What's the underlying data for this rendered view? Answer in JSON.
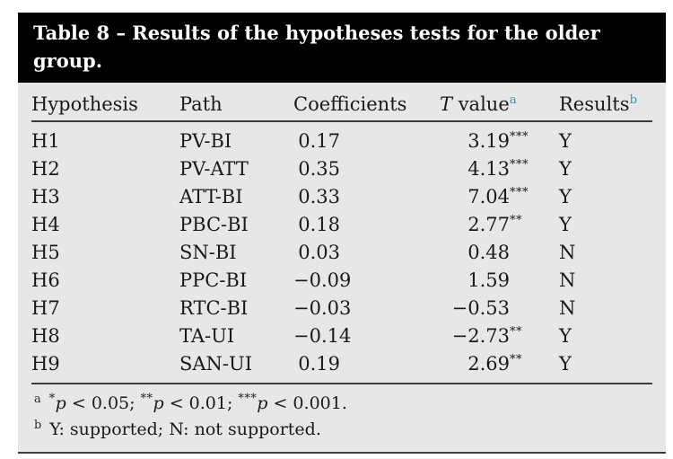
{
  "title": "Table 8 – Results of the hypotheses tests for the older group.",
  "columns": [
    {
      "label": "Hypothesis"
    },
    {
      "label": "Path"
    },
    {
      "label": "Coefficients"
    },
    {
      "label_italic": "T",
      "label_rest": " value",
      "sup": "a"
    },
    {
      "label": "Results",
      "sup": "b"
    }
  ],
  "rows": [
    {
      "hypothesis": "H1",
      "path": "PV-BI",
      "coefficient": "0.17",
      "t_value": "3.19",
      "stars": "***",
      "result": "Y"
    },
    {
      "hypothesis": "H2",
      "path": "PV-ATT",
      "coefficient": "0.35",
      "t_value": "4.13",
      "stars": "***",
      "result": "Y"
    },
    {
      "hypothesis": "H3",
      "path": "ATT-BI",
      "coefficient": "0.33",
      "t_value": "7.04",
      "stars": "***",
      "result": "Y"
    },
    {
      "hypothesis": "H4",
      "path": "PBC-BI",
      "coefficient": "0.18",
      "t_value": "2.77",
      "stars": "**",
      "result": "Y"
    },
    {
      "hypothesis": "H5",
      "path": "SN-BI",
      "coefficient": "0.03",
      "t_value": "0.48",
      "stars": "",
      "result": "N"
    },
    {
      "hypothesis": "H6",
      "path": "PPC-BI",
      "coefficient": "−0.09",
      "t_value": "1.59",
      "stars": "",
      "result": "N"
    },
    {
      "hypothesis": "H7",
      "path": "RTC-BI",
      "coefficient": "−0.03",
      "t_value": "−0.53",
      "stars": "",
      "result": "N"
    },
    {
      "hypothesis": "H8",
      "path": "TA-UI",
      "coefficient": "−0.14",
      "t_value": "−2.73",
      "stars": "**",
      "result": "Y"
    },
    {
      "hypothesis": "H9",
      "path": "SAN-UI",
      "coefficient": "0.19",
      "t_value": "2.69",
      "stars": "**",
      "result": "Y"
    }
  ],
  "footnotes": [
    {
      "marker": "a",
      "segments": [
        {
          "sup": "*"
        },
        {
          "i": "p"
        },
        {
          "t": " < 0.05; "
        },
        {
          "sup": "**"
        },
        {
          "i": "p"
        },
        {
          "t": " < 0.01; "
        },
        {
          "sup": "***"
        },
        {
          "i": "p"
        },
        {
          "t": " < 0.001."
        }
      ]
    },
    {
      "marker": "b",
      "segments": [
        {
          "t": "Y: supported; N: not supported."
        }
      ]
    }
  ],
  "colors": {
    "accent_blue": "#2e9bc6",
    "title_bg": "#000000",
    "title_fg": "#ffffff",
    "body_bg": "#e7e7e7",
    "rule": "#3d3d3d",
    "text": "#1a1a1a"
  }
}
